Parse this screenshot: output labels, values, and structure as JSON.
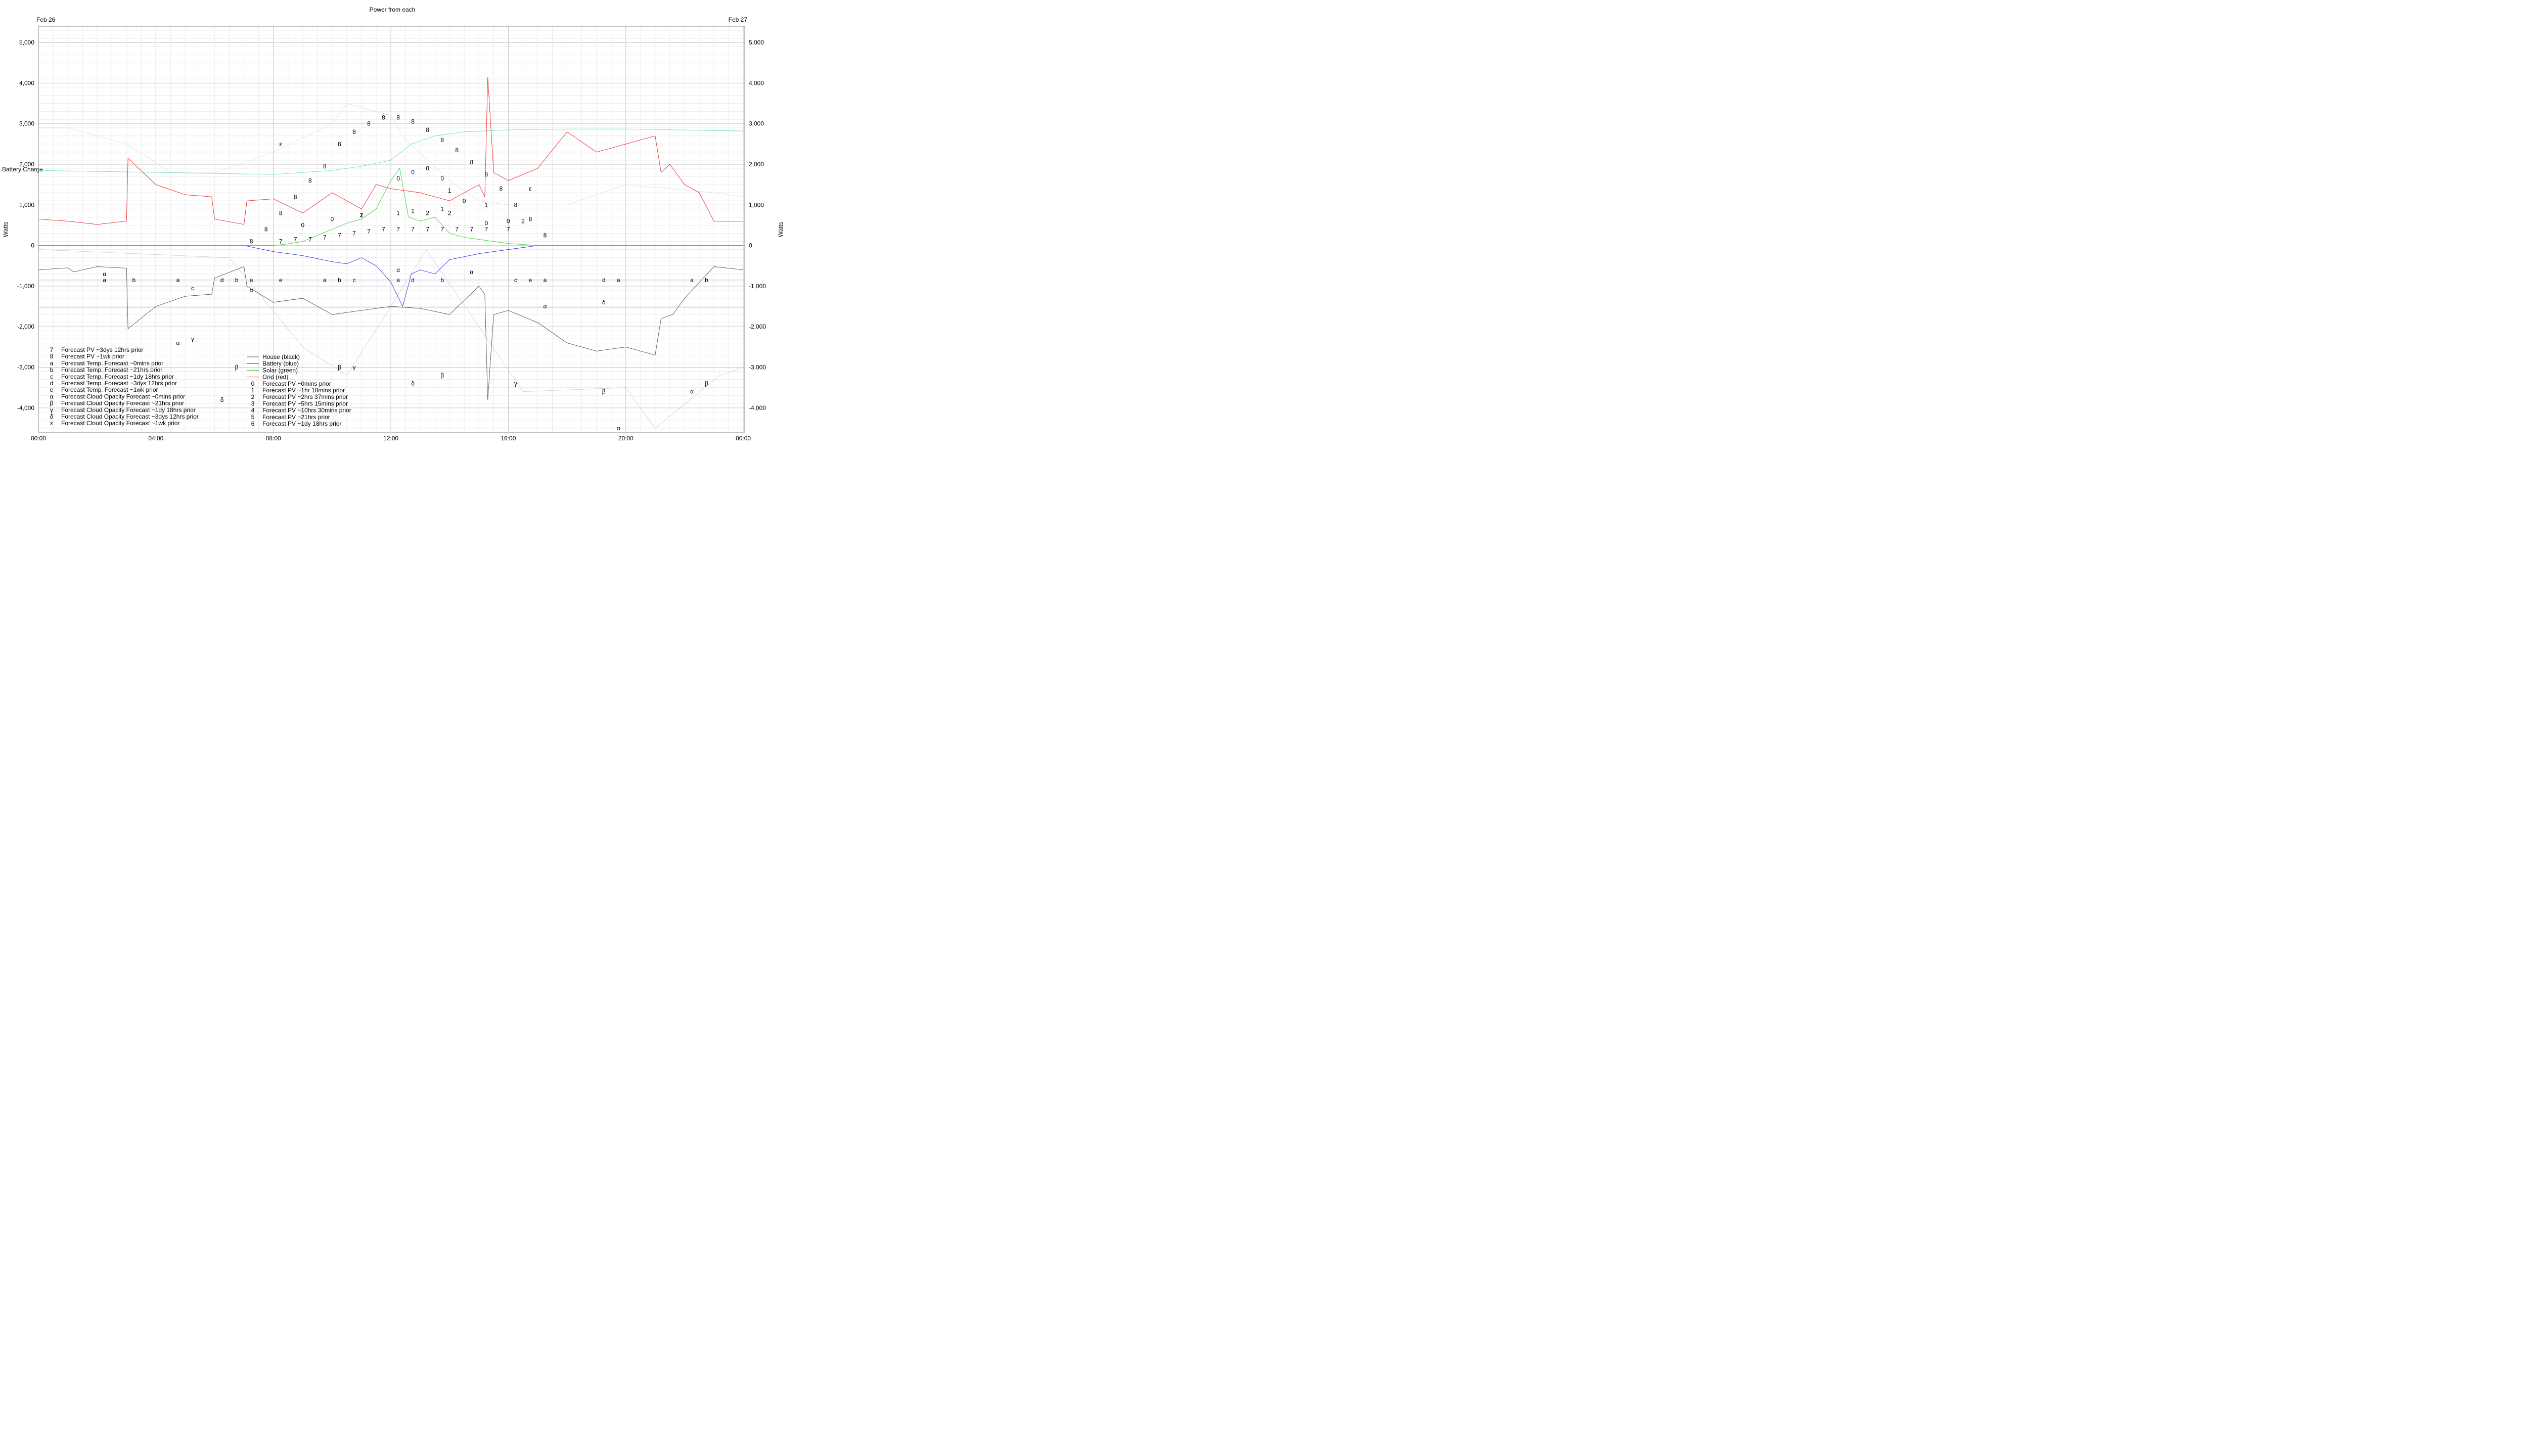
{
  "chart_data": {
    "type": "line",
    "title": "Power from each",
    "ylabel_left": "Watts",
    "ylabel_right": "Watts",
    "battery_charge_label": "Battery Charge",
    "x_unit": "hours",
    "xlim": [
      0,
      24.05
    ],
    "ylim": [
      -4600,
      5400
    ],
    "grid": true,
    "date_labels": {
      "start": "Feb 26",
      "end": "Feb 27"
    },
    "x_ticks": [
      {
        "v": 0,
        "label": "00:00"
      },
      {
        "v": 4,
        "label": "04:00"
      },
      {
        "v": 8,
        "label": "08:00"
      },
      {
        "v": 12,
        "label": "12:00"
      },
      {
        "v": 16,
        "label": "16:00"
      },
      {
        "v": 20,
        "label": "20:00"
      },
      {
        "v": 24,
        "label": "00:00"
      }
    ],
    "y_ticks": [
      {
        "v": 5000,
        "label": "5,000"
      },
      {
        "v": 4000,
        "label": "4,000"
      },
      {
        "v": 3000,
        "label": "3,000"
      },
      {
        "v": 2000,
        "label": "2,000"
      },
      {
        "v": 1000,
        "label": "1,000"
      },
      {
        "v": 0,
        "label": "0"
      },
      {
        "v": -1000,
        "label": "-1,000"
      },
      {
        "v": -2000,
        "label": "-2,000"
      },
      {
        "v": -3000,
        "label": "-3,000"
      },
      {
        "v": -4000,
        "label": "-4,000"
      }
    ],
    "series": [
      {
        "name": "House (black)",
        "color": "#555555",
        "x": [
          0,
          1,
          1.2,
          2,
          3,
          3.05,
          4,
          5,
          5.9,
          6,
          7,
          7.1,
          8,
          9,
          10,
          11,
          12,
          13,
          14,
          15,
          15.2,
          15.3,
          15.5,
          16,
          17,
          18,
          19,
          20,
          21,
          21.2,
          21.6,
          22,
          23,
          24
        ],
        "y": [
          -600,
          -550,
          -650,
          -520,
          -560,
          -2050,
          -1500,
          -1250,
          -1200,
          -800,
          -520,
          -1000,
          -1400,
          -1300,
          -1700,
          -1600,
          -1500,
          -1550,
          -1700,
          -1000,
          -1200,
          -3800,
          -1700,
          -1600,
          -1900,
          -2400,
          -2600,
          -2500,
          -2700,
          -1800,
          -1700,
          -1300,
          -520,
          -600
        ]
      },
      {
        "name": "Battery (blue)",
        "color": "#3333dd",
        "x": [
          0,
          7,
          8,
          9,
          10,
          10.5,
          11,
          11.5,
          12,
          12.4,
          12.7,
          13,
          13.5,
          14,
          15,
          16,
          17,
          18,
          24
        ],
        "y": [
          0,
          0,
          -150,
          -250,
          -400,
          -450,
          -300,
          -500,
          -900,
          -1500,
          -700,
          -600,
          -700,
          -350,
          -200,
          -100,
          0,
          0,
          0
        ]
      },
      {
        "name": "Solar (green)",
        "color": "#33cc33",
        "x": [
          0,
          7,
          8,
          8.5,
          9,
          10,
          10.5,
          11,
          11.5,
          12,
          12.3,
          12.6,
          13,
          13.5,
          14,
          14.5,
          15,
          15.5,
          16,
          17,
          24
        ],
        "y": [
          0,
          0,
          0,
          40,
          100,
          400,
          550,
          650,
          900,
          1600,
          1900,
          700,
          600,
          700,
          300,
          200,
          150,
          100,
          50,
          0,
          0
        ]
      },
      {
        "name": "Grid (red)",
        "color": "#ee2222",
        "x": [
          0,
          1,
          2,
          3,
          3.05,
          4,
          5,
          5.9,
          6,
          7,
          7.1,
          8,
          9,
          10,
          11,
          11.5,
          12,
          13,
          14,
          15,
          15.2,
          15.3,
          15.5,
          16,
          17,
          18,
          19,
          20,
          21,
          21.2,
          21.5,
          22,
          22.5,
          23,
          24
        ],
        "y": [
          650,
          600,
          520,
          600,
          2150,
          1500,
          1250,
          1200,
          650,
          520,
          1100,
          1150,
          800,
          1300,
          900,
          1500,
          1400,
          1300,
          1100,
          1500,
          1200,
          4150,
          1800,
          1600,
          1900,
          2800,
          2300,
          2500,
          2700,
          1800,
          2000,
          1500,
          1300,
          600,
          600
        ]
      },
      {
        "name": "Battery Charge",
        "color": "#55ddbb",
        "x": [
          0,
          4,
          8,
          10,
          11,
          12,
          12.7,
          13.5,
          14.5,
          16,
          18,
          20,
          24
        ],
        "y": [
          1850,
          1800,
          1750,
          1850,
          1950,
          2100,
          2500,
          2700,
          2800,
          2850,
          2870,
          2870,
          2820
        ]
      },
      {
        "name": "Forecast Temp. Forecast ~0mins prior",
        "color": "#9999ee",
        "x": [
          0,
          24
        ],
        "y": [
          -850,
          -850
        ]
      },
      {
        "name": "Forecast Temp. Forecast ~1wk prior",
        "color": "#aa88ee",
        "x": [
          0,
          24
        ],
        "y": [
          -1520,
          -1520
        ]
      },
      {
        "name": "Forecast Cloud Opacity Forecast ~0mins prior",
        "color": "#cccccc",
        "x": [
          0,
          6.5,
          9,
          10.5,
          12,
          13.2,
          15,
          16.5,
          20,
          21,
          23.2,
          24
        ],
        "y": [
          -100,
          -300,
          -2500,
          -3200,
          -1500,
          -100,
          -2000,
          -3600,
          -3500,
          -4500,
          -3200,
          -3000
        ]
      },
      {
        "name": "Forecast Cloud Opacity Forecast ~1wk prior",
        "color": "#dddddd",
        "x": [
          0,
          1,
          3,
          4.5,
          6,
          8,
          10,
          10.5,
          12,
          12.5,
          14,
          15,
          16,
          18,
          20,
          23,
          24
        ],
        "y": [
          2900,
          2900,
          2500,
          1800,
          1800,
          2300,
          3000,
          3500,
          3200,
          2600,
          1600,
          1100,
          1000,
          1000,
          1500,
          1300,
          1200
        ]
      }
    ],
    "markers": [
      {
        "symbol": "0",
        "x": 12.25,
        "y": 1650
      },
      {
        "symbol": "0",
        "x": 12.75,
        "y": 1800
      },
      {
        "symbol": "0",
        "x": 13.25,
        "y": 1900
      },
      {
        "symbol": "0",
        "x": 13.75,
        "y": 1650
      },
      {
        "symbol": "0",
        "x": 9,
        "y": 500
      },
      {
        "symbol": "0",
        "x": 10,
        "y": 650
      },
      {
        "symbol": "0",
        "x": 14.5,
        "y": 1100
      },
      {
        "symbol": "0",
        "x": 15.25,
        "y": 550
      },
      {
        "symbol": "0",
        "x": 16,
        "y": 600
      },
      {
        "symbol": "1",
        "x": 11,
        "y": 750
      },
      {
        "symbol": "1",
        "x": 12.25,
        "y": 800
      },
      {
        "symbol": "1",
        "x": 12.75,
        "y": 850
      },
      {
        "symbol": "1",
        "x": 13.75,
        "y": 900
      },
      {
        "symbol": "1",
        "x": 14,
        "y": 1350
      },
      {
        "symbol": "1",
        "x": 15.25,
        "y": 1000
      },
      {
        "symbol": "2",
        "x": 11,
        "y": 750
      },
      {
        "symbol": "2",
        "x": 13.25,
        "y": 800
      },
      {
        "symbol": "2",
        "x": 14,
        "y": 800
      },
      {
        "symbol": "2",
        "x": 16.5,
        "y": 600
      },
      {
        "symbol": "7",
        "x": 8.25,
        "y": 100
      },
      {
        "symbol": "7",
        "x": 8.75,
        "y": 150
      },
      {
        "symbol": "7",
        "x": 9.25,
        "y": 150
      },
      {
        "symbol": "7",
        "x": 9.75,
        "y": 200
      },
      {
        "symbol": "7",
        "x": 10.25,
        "y": 250
      },
      {
        "symbol": "7",
        "x": 10.75,
        "y": 300
      },
      {
        "symbol": "7",
        "x": 11.25,
        "y": 350
      },
      {
        "symbol": "7",
        "x": 11.75,
        "y": 400
      },
      {
        "symbol": "7",
        "x": 12.25,
        "y": 400
      },
      {
        "symbol": "7",
        "x": 12.75,
        "y": 400
      },
      {
        "symbol": "7",
        "x": 13.25,
        "y": 400
      },
      {
        "symbol": "7",
        "x": 13.75,
        "y": 400
      },
      {
        "symbol": "7",
        "x": 14.25,
        "y": 400
      },
      {
        "symbol": "7",
        "x": 14.75,
        "y": 400
      },
      {
        "symbol": "7",
        "x": 15.25,
        "y": 400
      },
      {
        "symbol": "7",
        "x": 16,
        "y": 400
      },
      {
        "symbol": "8",
        "x": 7.25,
        "y": 100
      },
      {
        "symbol": "8",
        "x": 7.75,
        "y": 400
      },
      {
        "symbol": "8",
        "x": 8.25,
        "y": 800
      },
      {
        "symbol": "8",
        "x": 8.75,
        "y": 1200
      },
      {
        "symbol": "8",
        "x": 9.25,
        "y": 1600
      },
      {
        "symbol": "8",
        "x": 9.75,
        "y": 1950
      },
      {
        "symbol": "8",
        "x": 10.25,
        "y": 2500
      },
      {
        "symbol": "8",
        "x": 10.75,
        "y": 2800
      },
      {
        "symbol": "8",
        "x": 11.25,
        "y": 3000
      },
      {
        "symbol": "8",
        "x": 11.75,
        "y": 3150
      },
      {
        "symbol": "8",
        "x": 12.25,
        "y": 3150
      },
      {
        "symbol": "8",
        "x": 12.75,
        "y": 3050
      },
      {
        "symbol": "8",
        "x": 13.25,
        "y": 2850
      },
      {
        "symbol": "8",
        "x": 13.75,
        "y": 2600
      },
      {
        "symbol": "8",
        "x": 14.25,
        "y": 2350
      },
      {
        "symbol": "8",
        "x": 14.75,
        "y": 2050
      },
      {
        "symbol": "8",
        "x": 15.25,
        "y": 1750
      },
      {
        "symbol": "8",
        "x": 15.75,
        "y": 1400
      },
      {
        "symbol": "8",
        "x": 16.25,
        "y": 1000
      },
      {
        "symbol": "8",
        "x": 16.75,
        "y": 650
      },
      {
        "symbol": "8",
        "x": 17.25,
        "y": 250
      },
      {
        "symbol": "a",
        "x": 2.25,
        "y": -850
      },
      {
        "symbol": "a",
        "x": 4.75,
        "y": -850
      },
      {
        "symbol": "a",
        "x": 7.25,
        "y": -850
      },
      {
        "symbol": "a",
        "x": 9.75,
        "y": -850
      },
      {
        "symbol": "a",
        "x": 12.25,
        "y": -850
      },
      {
        "symbol": "a",
        "x": 17.25,
        "y": -850
      },
      {
        "symbol": "a",
        "x": 19.75,
        "y": -850
      },
      {
        "symbol": "a",
        "x": 22.25,
        "y": -850
      },
      {
        "symbol": "b",
        "x": 3.25,
        "y": -850
      },
      {
        "symbol": "b",
        "x": 6.75,
        "y": -850
      },
      {
        "symbol": "b",
        "x": 10.25,
        "y": -850
      },
      {
        "symbol": "b",
        "x": 13.75,
        "y": -850
      },
      {
        "symbol": "b",
        "x": 22.75,
        "y": -850
      },
      {
        "symbol": "c",
        "x": 5.25,
        "y": -1050
      },
      {
        "symbol": "c",
        "x": 10.75,
        "y": -850
      },
      {
        "symbol": "c",
        "x": 16.25,
        "y": -850
      },
      {
        "symbol": "d",
        "x": 6.25,
        "y": -850
      },
      {
        "symbol": "d",
        "x": 12.75,
        "y": -850
      },
      {
        "symbol": "d",
        "x": 19.25,
        "y": -850
      },
      {
        "symbol": "e",
        "x": 8.25,
        "y": -850
      },
      {
        "symbol": "e",
        "x": 16.75,
        "y": -850
      },
      {
        "symbol": "α",
        "x": 2.25,
        "y": -700
      },
      {
        "symbol": "α",
        "x": 7.25,
        "y": -1100
      },
      {
        "symbol": "α",
        "x": 12.25,
        "y": -600
      },
      {
        "symbol": "α",
        "x": 14.75,
        "y": -650
      },
      {
        "symbol": "α",
        "x": 17.25,
        "y": -1500
      },
      {
        "symbol": "α",
        "x": 4.75,
        "y": -2400
      },
      {
        "symbol": "α",
        "x": 22.25,
        "y": -3600
      },
      {
        "symbol": "α",
        "x": 19.75,
        "y": -4500
      },
      {
        "symbol": "β",
        "x": 6.75,
        "y": -3000
      },
      {
        "symbol": "β",
        "x": 10.25,
        "y": -3000
      },
      {
        "symbol": "β",
        "x": 13.75,
        "y": -3200
      },
      {
        "symbol": "β",
        "x": 19.25,
        "y": -3600
      },
      {
        "symbol": "β",
        "x": 22.75,
        "y": -3400
      },
      {
        "symbol": "γ",
        "x": 5.25,
        "y": -2300
      },
      {
        "symbol": "γ",
        "x": 10.75,
        "y": -3000
      },
      {
        "symbol": "γ",
        "x": 16.25,
        "y": -3400
      },
      {
        "symbol": "δ",
        "x": 6.25,
        "y": -3800
      },
      {
        "symbol": "δ",
        "x": 12.75,
        "y": -3400
      },
      {
        "symbol": "δ",
        "x": 19.25,
        "y": -1400
      },
      {
        "symbol": "ε",
        "x": 8.25,
        "y": 2500
      },
      {
        "symbol": "ε",
        "x": 16.75,
        "y": 1400
      }
    ],
    "legend_left": [
      {
        "sym": "7",
        "label": "Forecast PV ~3dys 12hrs prior"
      },
      {
        "sym": "8",
        "label": "Forecast PV ~1wk prior"
      },
      {
        "sym": "a",
        "label": "Forecast Temp. Forecast ~0mins prior"
      },
      {
        "sym": "b",
        "label": "Forecast Temp. Forecast ~21hrs prior"
      },
      {
        "sym": "c",
        "label": "Forecast Temp. Forecast ~1dy 18hrs prior"
      },
      {
        "sym": "d",
        "label": "Forecast Temp. Forecast ~3dys 12hrs prior"
      },
      {
        "sym": "e",
        "label": "Forecast Temp. Forecast ~1wk prior"
      },
      {
        "sym": "α",
        "label": "Forecast Cloud Opacity Forecast ~0mins prior"
      },
      {
        "sym": "β",
        "label": "Forecast Cloud Opacity Forecast ~21hrs prior"
      },
      {
        "sym": "γ",
        "label": "Forecast Cloud Opacity Forecast ~1dy 18hrs prior"
      },
      {
        "sym": "δ",
        "label": "Forecast Cloud Opacity Forecast ~3dys 12hrs prior"
      },
      {
        "sym": "ε",
        "label": "Forecast Cloud Opacity Forecast ~1wk prior"
      }
    ],
    "legend_right_lines": [
      {
        "label": "House (black)",
        "color": "#555555"
      },
      {
        "label": "Battery (blue)",
        "color": "#3333dd"
      },
      {
        "label": "Solar (green)",
        "color": "#33cc33"
      },
      {
        "label": "Grid (red)",
        "color": "#ee2222"
      }
    ],
    "legend_right_syms": [
      {
        "sym": "0",
        "label": "Forecast PV ~0mins prior"
      },
      {
        "sym": "1",
        "label": "Forecast PV ~1hr 18mins prior"
      },
      {
        "sym": "2",
        "label": "Forecast PV ~2hrs 37mins prior"
      },
      {
        "sym": "3",
        "label": "Forecast PV ~5hrs 15mins prior"
      },
      {
        "sym": "4",
        "label": "Forecast PV ~10hrs 30mins prior"
      },
      {
        "sym": "5",
        "label": "Forecast PV ~21hrs prior"
      },
      {
        "sym": "6",
        "label": "Forecast PV ~1dy 18hrs prior"
      }
    ]
  }
}
